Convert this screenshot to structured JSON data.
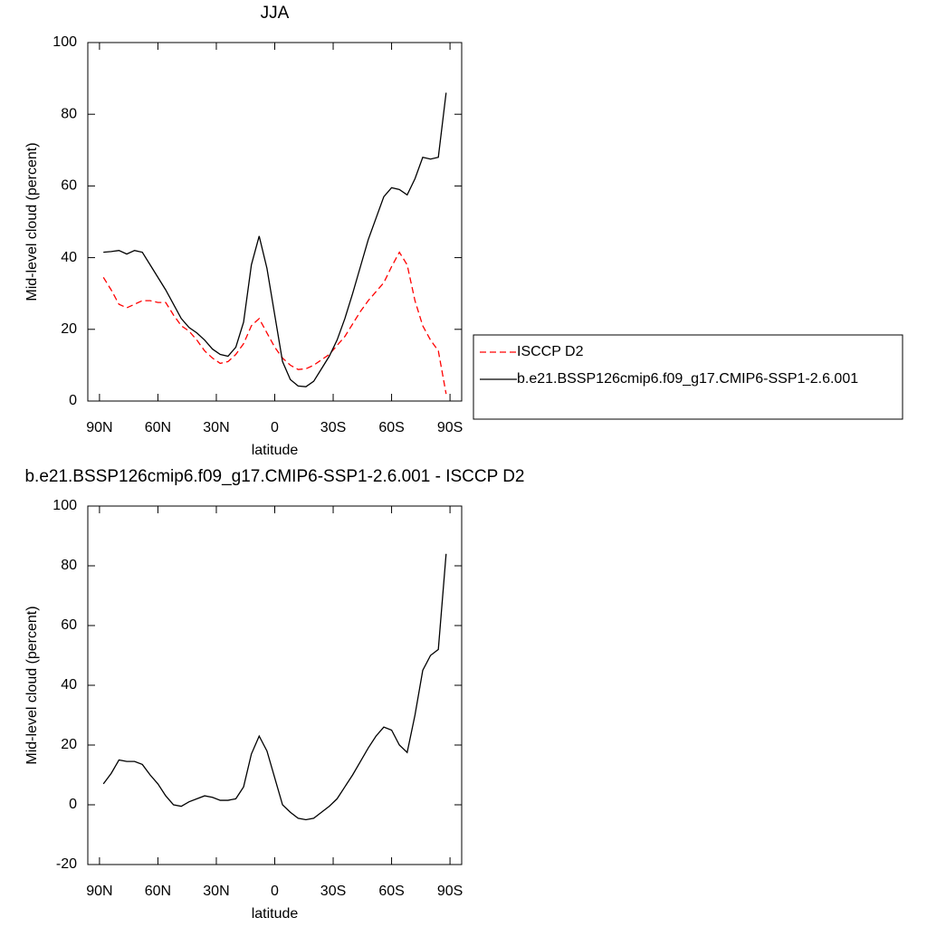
{
  "chart_data": [
    {
      "type": "line",
      "title": "JJA",
      "x_label": "latitude",
      "y_label": "Mid-level cloud (percent)",
      "x": [
        88,
        84,
        80,
        76,
        72,
        68,
        64,
        60,
        56,
        52,
        48,
        44,
        40,
        36,
        32,
        28,
        24,
        20,
        16,
        12,
        8,
        4,
        0,
        -4,
        -8,
        -12,
        -16,
        -20,
        -24,
        -28,
        -32,
        -36,
        -40,
        -44,
        -48,
        -52,
        -56,
        -60,
        -64,
        -68,
        -72,
        -76,
        -80,
        -84,
        -88
      ],
      "series": [
        {
          "name": "ISCCP D2",
          "color": "#ff0000",
          "line_style": "dashed",
          "values": [
            34.5,
            31,
            27,
            26,
            27,
            28,
            28,
            27.5,
            27.5,
            24,
            21,
            19.5,
            17,
            14,
            12,
            10.5,
            11,
            13,
            16,
            21,
            23,
            19,
            15,
            12,
            10,
            8.8,
            9,
            10,
            11.5,
            13,
            15.5,
            18,
            21.5,
            25,
            28,
            30.5,
            33,
            37.5,
            41.5,
            38,
            28,
            21,
            17,
            14,
            2
          ]
        },
        {
          "name": "b.e21.BSSP126cmip6.f09_g17.CMIP6-SSP1-2.6.001",
          "color": "#000000",
          "line_style": "solid",
          "values": [
            41.5,
            41.7,
            42,
            41,
            42,
            41.5,
            38,
            34.5,
            31,
            27,
            23,
            20.5,
            19,
            17,
            14.5,
            13,
            12.5,
            15,
            22,
            38,
            46,
            37,
            24,
            11,
            6,
            4.2,
            4,
            5.5,
            9,
            12.5,
            17,
            23,
            30,
            37.5,
            45,
            51,
            57,
            59.5,
            59,
            57.5,
            62,
            68,
            67.5,
            68,
            86
          ]
        }
      ],
      "xlim": [
        96,
        -96
      ],
      "ylim": [
        0,
        100
      ],
      "xticks": [
        {
          "value": 90,
          "label": "90N"
        },
        {
          "value": 60,
          "label": "60N"
        },
        {
          "value": 30,
          "label": "30N"
        },
        0,
        {
          "value": -30,
          "label": "30S"
        },
        {
          "value": -60,
          "label": "60S"
        },
        {
          "value": -90,
          "label": "90S"
        }
      ],
      "yticks": [
        0,
        20,
        40,
        60,
        80,
        100
      ],
      "legend": "right"
    },
    {
      "type": "line",
      "title": "b.e21.BSSP126cmip6.f09_g17.CMIP6-SSP1-2.6.001 - ISCCP D2",
      "x_label": "latitude",
      "y_label": "Mid-level cloud (percent)",
      "x": [
        88,
        84,
        80,
        76,
        72,
        68,
        64,
        60,
        56,
        52,
        48,
        44,
        40,
        36,
        32,
        28,
        24,
        20,
        16,
        12,
        8,
        4,
        0,
        -4,
        -8,
        -12,
        -16,
        -20,
        -24,
        -28,
        -32,
        -36,
        -40,
        -44,
        -48,
        -52,
        -56,
        -60,
        -64,
        -68,
        -72,
        -76,
        -80,
        -84,
        -88
      ],
      "values": [
        7,
        10.5,
        15,
        14.5,
        14.5,
        13.5,
        10,
        7,
        3,
        0,
        -0.5,
        1,
        2,
        3,
        2.5,
        1.5,
        1.5,
        2,
        6,
        17,
        23,
        18,
        9,
        0,
        -2.5,
        -4.5,
        -5,
        -4.5,
        -2.5,
        -0.5,
        2,
        6,
        10,
        14.5,
        19,
        23,
        26,
        25,
        20,
        17.5,
        30,
        45,
        50,
        52,
        84
      ],
      "color": "#000000",
      "xlim": [
        96,
        -96
      ],
      "ylim": [
        -20,
        100
      ],
      "xticks": [
        {
          "value": 90,
          "label": "90N"
        },
        {
          "value": 60,
          "label": "60N"
        },
        {
          "value": 30,
          "label": "30N"
        },
        0,
        {
          "value": -30,
          "label": "30S"
        },
        {
          "value": -60,
          "label": "60S"
        },
        {
          "value": -90,
          "label": "90S"
        }
      ],
      "yticks": [
        -20,
        0,
        20,
        40,
        60,
        80,
        100
      ]
    }
  ]
}
